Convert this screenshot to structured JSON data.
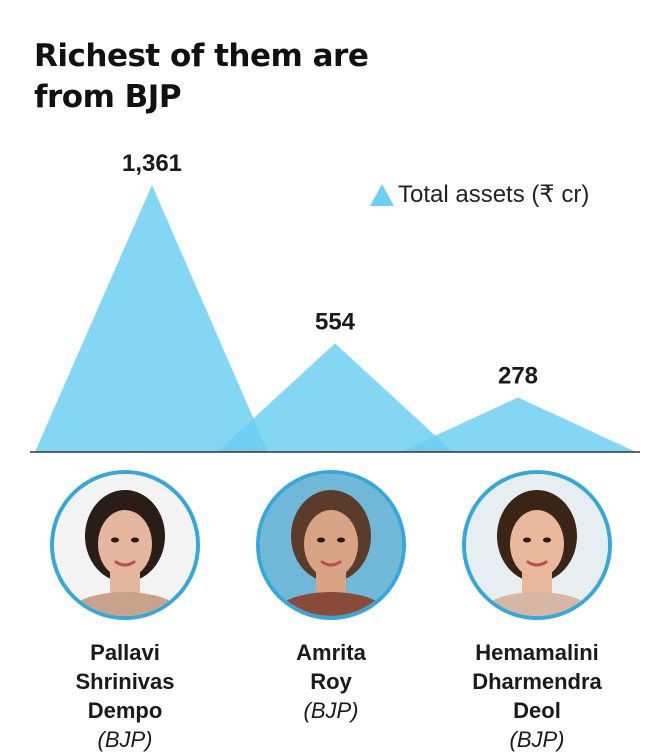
{
  "title": [
    "Richest of them are",
    "from BJP"
  ],
  "legend": {
    "label": "Total assets (₹ cr)",
    "color": "#6dcff2"
  },
  "chart_data": {
    "type": "area",
    "title": "Richest of them are from BJP",
    "series": [
      {
        "name": "Total assets (₹ cr)",
        "values": [
          1361,
          554,
          278
        ]
      }
    ],
    "categories": [
      "Pallavi Shrinivas Dempo (BJP)",
      "Amrita Roy (BJP)",
      "Hemamalini Dharmendra Deol (BJP)"
    ],
    "value_labels": [
      "1,361",
      "554",
      "278"
    ],
    "ylim": [
      0,
      1361
    ],
    "grid": false,
    "legend_position": "top-right"
  },
  "people": [
    {
      "name_lines": [
        "Pallavi",
        "Shrinivas"
      ],
      "last_line": "Dempo",
      "party": "(BJP)",
      "icon": "portrait-pallavi-dempo",
      "skin": "#e4b6a0",
      "hair": "#2a1c16",
      "bg": "#f3f3f3"
    },
    {
      "name_lines": [
        "Amrita",
        "Roy"
      ],
      "last_line": "",
      "party": "(BJP)",
      "icon": "portrait-amrita-roy",
      "skin": "#d9a386",
      "hair": "#5b3b2a",
      "bg": "#6fb8d8"
    },
    {
      "name_lines": [
        "Hemamalini",
        "Dharmendra"
      ],
      "last_line": "Deol",
      "party": "(BJP)",
      "icon": "portrait-hemamalini-deol",
      "skin": "#e8b79c",
      "hair": "#3a2418",
      "bg": "#e6eef2"
    }
  ]
}
